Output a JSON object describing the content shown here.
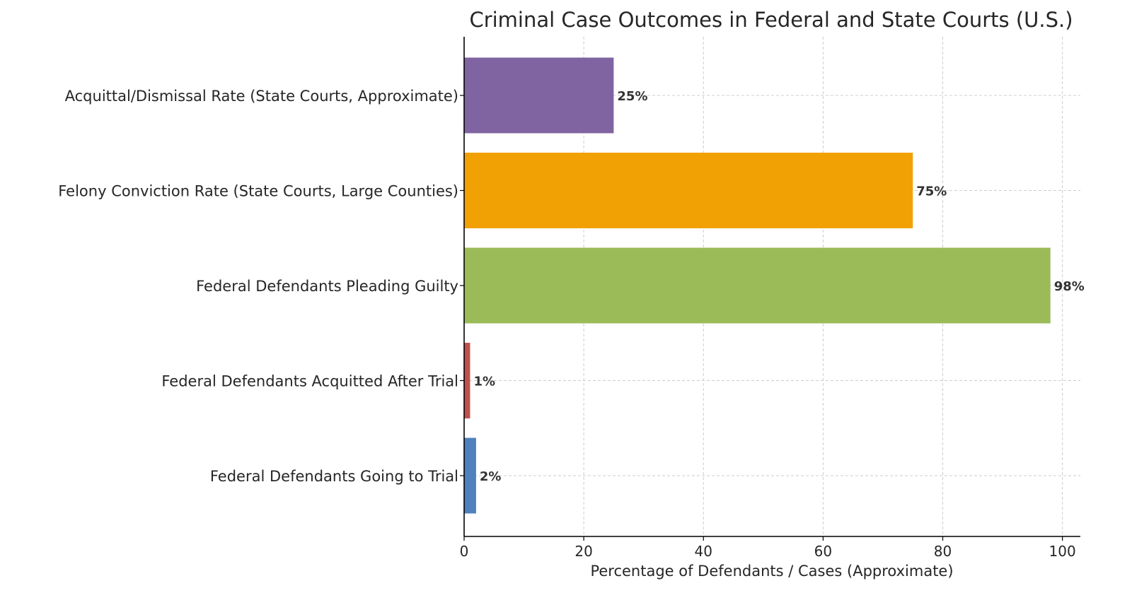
{
  "chart_data": {
    "type": "bar",
    "orientation": "horizontal",
    "title": "Criminal Case Outcomes in Federal and State Courts (U.S.)",
    "xlabel": "Percentage of Defendants / Cases (Approximate)",
    "ylabel": "",
    "categories": [
      "Federal Defendants Going to Trial",
      "Federal Defendants Acquitted After Trial",
      "Federal Defendants Pleading Guilty",
      "Felony Conviction Rate (State Courts, Large Counties)",
      "Acquittal/Dismissal Rate (State Courts, Approximate)"
    ],
    "values": [
      2,
      1,
      98,
      75,
      25
    ],
    "data_labels": [
      "2%",
      "1%",
      "98%",
      "75%",
      "25%"
    ],
    "colors": [
      "#4f81bd",
      "#c0504d",
      "#9bbb59",
      "#f2a104",
      "#8064a2"
    ],
    "xlim": [
      0,
      103
    ],
    "xticks": [
      0,
      20,
      40,
      60,
      80,
      100
    ],
    "xtick_labels": [
      "0",
      "20",
      "40",
      "60",
      "80",
      "100"
    ],
    "grid": true,
    "grid_style": "dashed"
  }
}
